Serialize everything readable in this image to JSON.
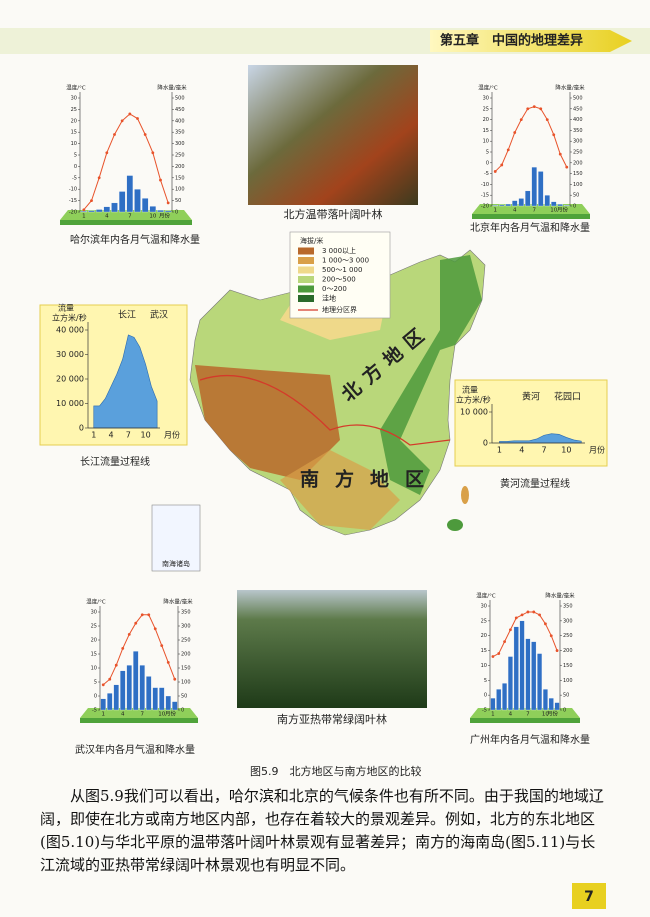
{
  "header": "第五章　中国的地理差异",
  "page_number": "7",
  "figure_caption": "图5.9　北方地区与南方地区的比较",
  "paragraph": "从图5.9我们可以看出，哈尔滨和北京的气候条件也有所不同。由于我国的地域辽阔，即使在北方或南方地区内部，也存在着较大的景观差异。例如，北方的东北地区(图5.10)与华北平原的温带落叶阔叶林景观有显著差异；南方的海南岛(图5.11)与长江流域的亚热带常绿阔叶林景观也有明显不同。",
  "photos": [
    "北方温带落叶阔叶林",
    "南方亚热带常绿阔叶林"
  ],
  "map": {
    "legend_title": "海拔/米",
    "legend": [
      {
        "label": "3 000以上",
        "color": "#b8692a"
      },
      {
        "label": "1 000～3 000",
        "color": "#d9a048"
      },
      {
        "label": "500～1 000",
        "color": "#efd98a"
      },
      {
        "label": "200～500",
        "color": "#b9d77a"
      },
      {
        "label": "0～200",
        "color": "#4d9a3c"
      },
      {
        "label": "洼地",
        "color": "#2a6a2a"
      }
    ],
    "boundary": "地理分区界",
    "north": "北方地区",
    "south": "南方地区",
    "inset": "南海诸岛"
  },
  "chart_data": [
    {
      "type": "combo",
      "title": "哈尔滨年内各月气温和降水量",
      "ylabel": "温度/°C",
      "y2label": "降水量/毫米",
      "xlabel": "月份",
      "x": [
        1,
        2,
        3,
        4,
        5,
        6,
        7,
        8,
        9,
        10,
        11,
        12
      ],
      "xlim": [
        0.5,
        12.5
      ],
      "xticks": [
        1,
        4,
        7,
        10
      ],
      "ylim": [
        -20,
        30
      ],
      "yticks": [
        -20,
        -15,
        -10,
        -5,
        0,
        5,
        10,
        15,
        20,
        25,
        30
      ],
      "y2lim": [
        0,
        500
      ],
      "y2ticks": [
        0,
        50,
        100,
        150,
        200,
        250,
        300,
        350,
        400,
        450,
        500
      ],
      "series": [
        {
          "kind": "bar",
          "axis": "y2",
          "color": "#2f6fc4",
          "values": [
            4,
            6,
            11,
            23,
            40,
            90,
            160,
            100,
            60,
            25,
            8,
            5
          ]
        },
        {
          "kind": "line",
          "color": "#e8532b",
          "values": [
            -19,
            -15,
            -5,
            6,
            14,
            20,
            23,
            21,
            14,
            6,
            -6,
            -16
          ]
        }
      ]
    },
    {
      "type": "combo",
      "title": "北京年内各月气温和降水量",
      "ylabel": "温度/°C",
      "y2label": "降水量/毫米",
      "xlabel": "月份",
      "x": [
        1,
        2,
        3,
        4,
        5,
        6,
        7,
        8,
        9,
        10,
        11,
        12
      ],
      "xlim": [
        0.5,
        12.5
      ],
      "xticks": [
        1,
        4,
        7,
        10
      ],
      "ylim": [
        -20,
        30
      ],
      "yticks": [
        -20,
        -15,
        -10,
        -5,
        0,
        5,
        10,
        15,
        20,
        25,
        30
      ],
      "y2lim": [
        0,
        500
      ],
      "y2ticks": [
        0,
        50,
        100,
        150,
        200,
        250,
        300,
        350,
        400,
        450,
        500
      ],
      "series": [
        {
          "kind": "bar",
          "axis": "y2",
          "color": "#2f6fc4",
          "values": [
            3,
            5,
            9,
            25,
            35,
            70,
            180,
            160,
            50,
            20,
            8,
            3
          ]
        },
        {
          "kind": "line",
          "color": "#e8532b",
          "values": [
            -4,
            -1,
            6,
            14,
            20,
            25,
            26,
            25,
            20,
            13,
            4,
            -2
          ]
        }
      ]
    },
    {
      "type": "combo",
      "title": "武汉年内各月气温和降水量",
      "ylabel": "温度/°C",
      "y2label": "降水量/毫米",
      "xlabel": "月份",
      "x": [
        1,
        2,
        3,
        4,
        5,
        6,
        7,
        8,
        9,
        10,
        11,
        12
      ],
      "xlim": [
        0.5,
        12.5
      ],
      "xticks": [
        1,
        4,
        7,
        10
      ],
      "ylim": [
        -5,
        30
      ],
      "yticks": [
        -5,
        0,
        5,
        10,
        15,
        20,
        25,
        30
      ],
      "y2lim": [
        0,
        350
      ],
      "y2ticks": [
        0,
        50,
        100,
        150,
        200,
        250,
        300,
        350
      ],
      "series": [
        {
          "kind": "bar",
          "axis": "y2",
          "color": "#2f6fc4",
          "values": [
            40,
            60,
            90,
            140,
            160,
            210,
            160,
            120,
            80,
            80,
            50,
            30
          ]
        },
        {
          "kind": "line",
          "color": "#e8532b",
          "values": [
            4,
            6,
            11,
            17,
            22,
            26,
            29,
            29,
            24,
            18,
            12,
            6
          ]
        }
      ]
    },
    {
      "type": "combo",
      "title": "广州年内各月气温和降水量",
      "ylabel": "温度/°C",
      "y2label": "降水量/毫米",
      "xlabel": "月份",
      "x": [
        1,
        2,
        3,
        4,
        5,
        6,
        7,
        8,
        9,
        10,
        11,
        12
      ],
      "xlim": [
        0.5,
        12.5
      ],
      "xticks": [
        1,
        4,
        7,
        10
      ],
      "ylim": [
        -5,
        30
      ],
      "yticks": [
        -5,
        0,
        5,
        10,
        15,
        20,
        25,
        30
      ],
      "y2lim": [
        0,
        350
      ],
      "y2ticks": [
        0,
        50,
        100,
        150,
        200,
        250,
        300,
        350
      ],
      "series": [
        {
          "kind": "bar",
          "axis": "y2",
          "color": "#2f6fc4",
          "values": [
            40,
            70,
            90,
            180,
            280,
            300,
            240,
            230,
            190,
            70,
            40,
            25
          ]
        },
        {
          "kind": "line",
          "color": "#e8532b",
          "values": [
            13,
            14,
            18,
            22,
            26,
            27,
            28,
            28,
            27,
            24,
            20,
            15
          ]
        }
      ]
    },
    {
      "type": "area",
      "title": "长江流量过程线",
      "ylabel": "流量",
      "yunit": "立方米/秒",
      "river": "长江",
      "station": "武汉",
      "xlabel": "月份",
      "x": [
        1,
        2,
        3,
        4,
        5,
        6,
        7,
        8,
        9,
        10,
        11,
        12
      ],
      "xlim": [
        0,
        12.5
      ],
      "xticks": [
        1,
        4,
        7,
        10
      ],
      "ylim": [
        0,
        40000
      ],
      "yticks": [
        0,
        {
          "value": 10000,
          "label": "10 000"
        },
        {
          "value": 20000,
          "label": "20 000"
        },
        {
          "value": 30000,
          "label": "30 000"
        },
        {
          "value": 40000,
          "label": "40 000"
        }
      ],
      "color": "#5aa0dc",
      "values": [
        9000,
        9000,
        12000,
        17000,
        22000,
        28000,
        38000,
        37000,
        33000,
        26000,
        17000,
        11000
      ]
    },
    {
      "type": "area",
      "title": "黄河流量过程线",
      "ylabel": "流量",
      "yunit": "立方米/秒",
      "river": "黄河",
      "station": "花园口",
      "xlabel": "月份",
      "x": [
        1,
        2,
        3,
        4,
        5,
        6,
        7,
        8,
        9,
        10,
        11,
        12
      ],
      "xlim": [
        0,
        12.5
      ],
      "xticks": [
        1,
        4,
        7,
        10
      ],
      "ylim": [
        0,
        10000
      ],
      "yticks": [
        0,
        {
          "value": 10000,
          "label": "10 000"
        }
      ],
      "color": "#5aa0dc",
      "values": [
        500,
        500,
        700,
        700,
        700,
        1300,
        2500,
        3000,
        2800,
        1800,
        1000,
        600
      ]
    }
  ]
}
